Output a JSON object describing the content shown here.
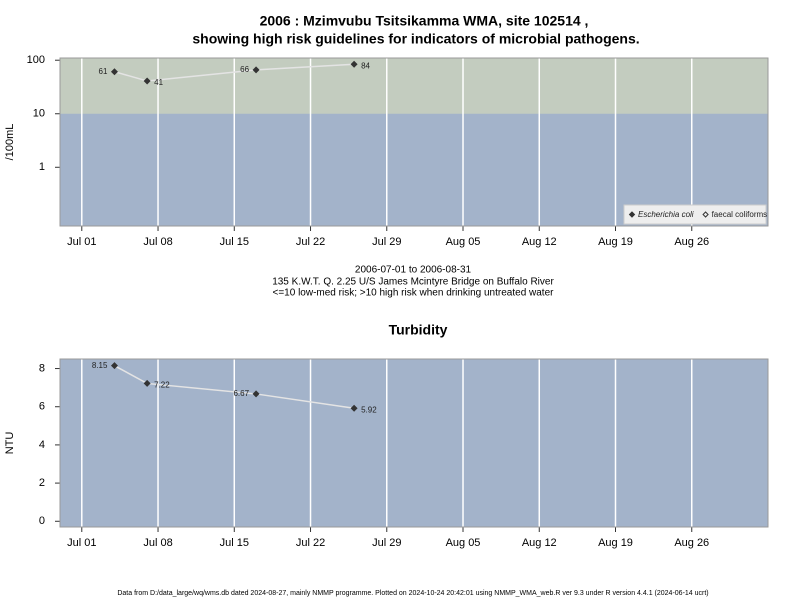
{
  "title": [
    "2006 : Mzimvubu Tsitsikamma WMA, site 102514 ,",
    "showing high risk guidelines for indicators of microbial pathogens."
  ],
  "notes": [
    "2006-07-01 to 2006-08-31",
    "135 K.W.T. Q. 2.25 U/S James Mcintyre Bridge on Buffalo River",
    "<=10 low-med risk; >10 high risk when drinking untreated water"
  ],
  "footer": "Data from D:/data_large/wq/wms.db dated 2024-08-27, mainly NMMP programme. Plotted on 2024-10-24 20:42:01 using NMMP_WMA_web.R ver 9.3 under R version 4.4.1 (2024-06-14 ucrt)",
  "chart_data": [
    {
      "type": "line",
      "y_label": "/100mL",
      "log_scale": true,
      "x": [
        "Jul 04",
        "Jul 07",
        "Jul 17",
        "Jul 26"
      ],
      "series": [
        {
          "name": "Escherichia coli",
          "color": "#333333",
          "line_color": "#e4e4e4",
          "marker": "filled",
          "values": [
            61,
            41,
            66,
            84
          ]
        },
        {
          "name": "faecal coliforms",
          "color": "#333333",
          "line_color": "#e4e4e4",
          "marker": "open",
          "values": [
            null,
            null,
            null,
            null
          ]
        }
      ],
      "xlim": [
        "Jun 29",
        "Sep 02"
      ],
      "xticks": [
        "Jul 01",
        "Jul 08",
        "Jul 15",
        "Jul 22",
        "Jul 29",
        "Aug 05",
        "Aug 12",
        "Aug 19",
        "Aug 26"
      ],
      "ylim": [
        0.08,
        110
      ],
      "yticks": [
        1,
        10,
        100
      ],
      "grid": "x",
      "background": "#a3b3ca",
      "threshold": 10,
      "above_color": "#c3ccbf",
      "legend": "bottom-right"
    },
    {
      "type": "line",
      "title": "Turbidity",
      "y_label": "NTU",
      "log_scale": false,
      "x": [
        "Jul 04",
        "Jul 07",
        "Jul 17",
        "Jul 26"
      ],
      "values": [
        8.15,
        7.22,
        6.67,
        5.92
      ],
      "color": "#333333",
      "line_color": "#e4e4e4",
      "xlim": [
        "Jun 29",
        "Sep 02"
      ],
      "xticks": [
        "Jul 01",
        "Jul 08",
        "Jul 15",
        "Jul 22",
        "Jul 29",
        "Aug 05",
        "Aug 12",
        "Aug 19",
        "Aug 26"
      ],
      "ylim": [
        -0.3,
        8.5
      ],
      "yticks": [
        0,
        2,
        4,
        6,
        8
      ],
      "grid": "x",
      "background": "#a3b3ca"
    }
  ]
}
